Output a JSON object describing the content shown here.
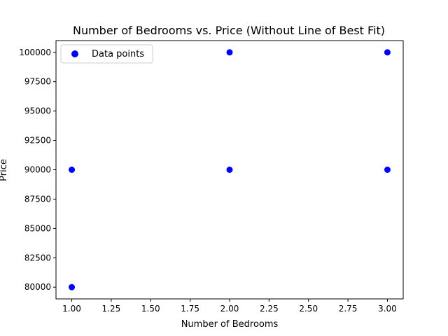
{
  "chart_data": {
    "type": "scatter",
    "title": "Number of Bedrooms vs. Price (Without Line of Best Fit)",
    "xlabel": "Number of Bedrooms",
    "ylabel": "Price",
    "xlim": [
      0.9,
      3.1
    ],
    "ylim": [
      79000,
      101000
    ],
    "xticks": [
      "1.00",
      "1.25",
      "1.50",
      "1.75",
      "2.00",
      "2.25",
      "2.50",
      "2.75",
      "3.00"
    ],
    "yticks": [
      "80000",
      "82500",
      "85000",
      "87500",
      "90000",
      "92500",
      "95000",
      "97500",
      "100000"
    ],
    "grid": false,
    "legend_position": "top-left",
    "series": [
      {
        "name": "Data points",
        "color": "#0000ff",
        "points": [
          {
            "x": 1,
            "y": 80000
          },
          {
            "x": 1,
            "y": 90000
          },
          {
            "x": 2,
            "y": 90000
          },
          {
            "x": 2,
            "y": 100000
          },
          {
            "x": 3,
            "y": 90000
          },
          {
            "x": 3,
            "y": 100000
          }
        ]
      }
    ]
  }
}
